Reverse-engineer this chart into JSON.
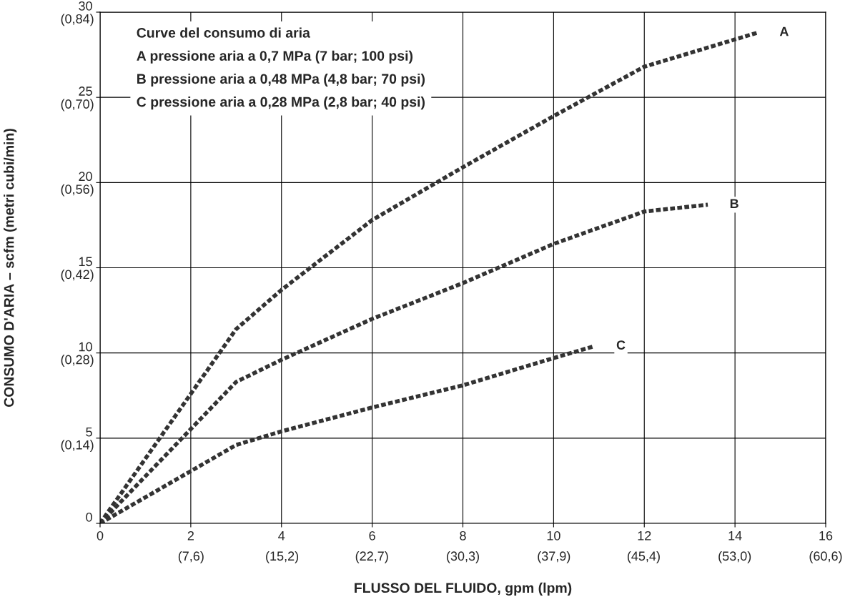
{
  "chart_data": {
    "type": "line",
    "xlabel": "FLUSSO DEL FLUIDO, gpm (lpm)",
    "y2label": "CONSUMO D'ARIA – scfm (metri cubi/min)",
    "annotations": [
      "Curve del consumo di aria",
      "A pressione aria a 0,7 MPa (7 bar; 100 psi)",
      "B pressione aria a 0,48 MPa (4,8 bar; 70 psi)",
      "C pressione aria a 0,28 MPa (2,8 bar; 40 psi)"
    ],
    "series": [
      {
        "name": "A",
        "color": "#333333",
        "x": [
          0,
          3,
          4,
          6,
          8,
          10,
          12,
          14.5
        ],
        "values": [
          0,
          11.4,
          13.7,
          17.8,
          20.9,
          23.9,
          26.8,
          28.8
        ]
      },
      {
        "name": "B",
        "color": "#333333",
        "x": [
          0,
          3,
          4,
          6,
          8,
          10,
          12,
          13.4
        ],
        "values": [
          0,
          8.3,
          9.6,
          12.0,
          14.1,
          16.4,
          18.3,
          18.7
        ]
      },
      {
        "name": "C",
        "color": "#333333",
        "x": [
          0,
          3,
          4,
          6,
          8,
          10,
          10.9
        ],
        "values": [
          0,
          4.6,
          5.4,
          6.8,
          8.1,
          9.7,
          10.4
        ]
      }
    ],
    "xlim": [
      0,
      16
    ],
    "xticks": [
      0,
      2,
      4,
      6,
      8,
      10,
      12,
      14,
      16
    ],
    "x2lim": [
      0,
      60.6
    ],
    "x2ticks": [
      {
        "value": 7.6,
        "label": "(7,6)"
      },
      {
        "value": 15.2,
        "label": "(15,2)"
      },
      {
        "value": 22.7,
        "label": "(22,7)"
      },
      {
        "value": 30.3,
        "label": "(30,3)"
      },
      {
        "value": 37.9,
        "label": "(37,9)"
      },
      {
        "value": 45.4,
        "label": "(45,4)"
      },
      {
        "value": 53.0,
        "label": "(53,0)"
      },
      {
        "value": 60.6,
        "label": "(60,6)"
      }
    ],
    "ylim": [
      0,
      30
    ],
    "yticks": [
      0,
      5,
      10,
      15,
      20,
      25,
      30
    ],
    "y2lim": [
      0,
      0.84
    ],
    "y2ticks": [
      {
        "value": 0.14,
        "label": "(0,14)"
      },
      {
        "value": 0.28,
        "label": "(0,28)"
      },
      {
        "value": 0.42,
        "label": "(0,42)"
      },
      {
        "value": 0.56,
        "label": "(0,56)"
      },
      {
        "value": 0.7,
        "label": "(0,70)"
      },
      {
        "value": 0.84,
        "label": "(0,84)"
      }
    ],
    "grid": true,
    "legend": false,
    "marker": "none",
    "line_style": "dashed"
  }
}
